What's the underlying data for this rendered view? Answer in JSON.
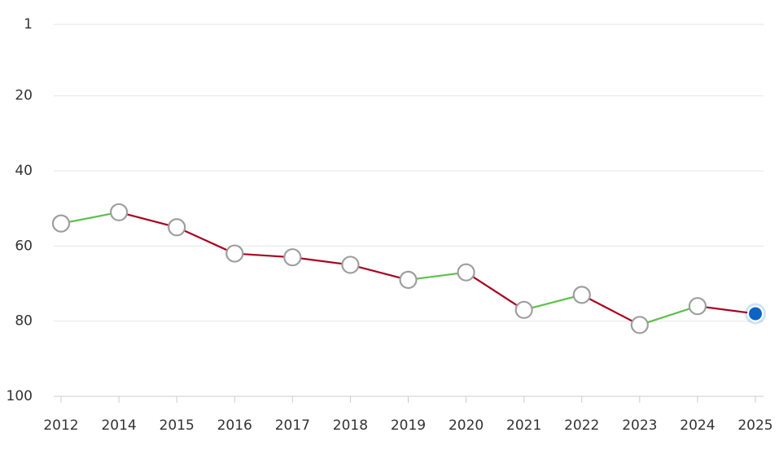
{
  "chart_data": {
    "type": "line",
    "categories": [
      "2012",
      "2014",
      "2015",
      "2016",
      "2017",
      "2018",
      "2019",
      "2020",
      "2021",
      "2022",
      "2023",
      "2024",
      "2025"
    ],
    "values": [
      54,
      51,
      55,
      62,
      63,
      65,
      69,
      67,
      77,
      73,
      81,
      76,
      78
    ],
    "ylim": [
      1,
      100
    ],
    "yticks": [
      1,
      20,
      40,
      60,
      80,
      100
    ],
    "y_inverted": true,
    "grid": true,
    "improve_color": "#5cc04a",
    "decline_color": "#a8001f",
    "marker_stroke": "#9e9e9e",
    "highlight_color": "#0b63c4"
  }
}
